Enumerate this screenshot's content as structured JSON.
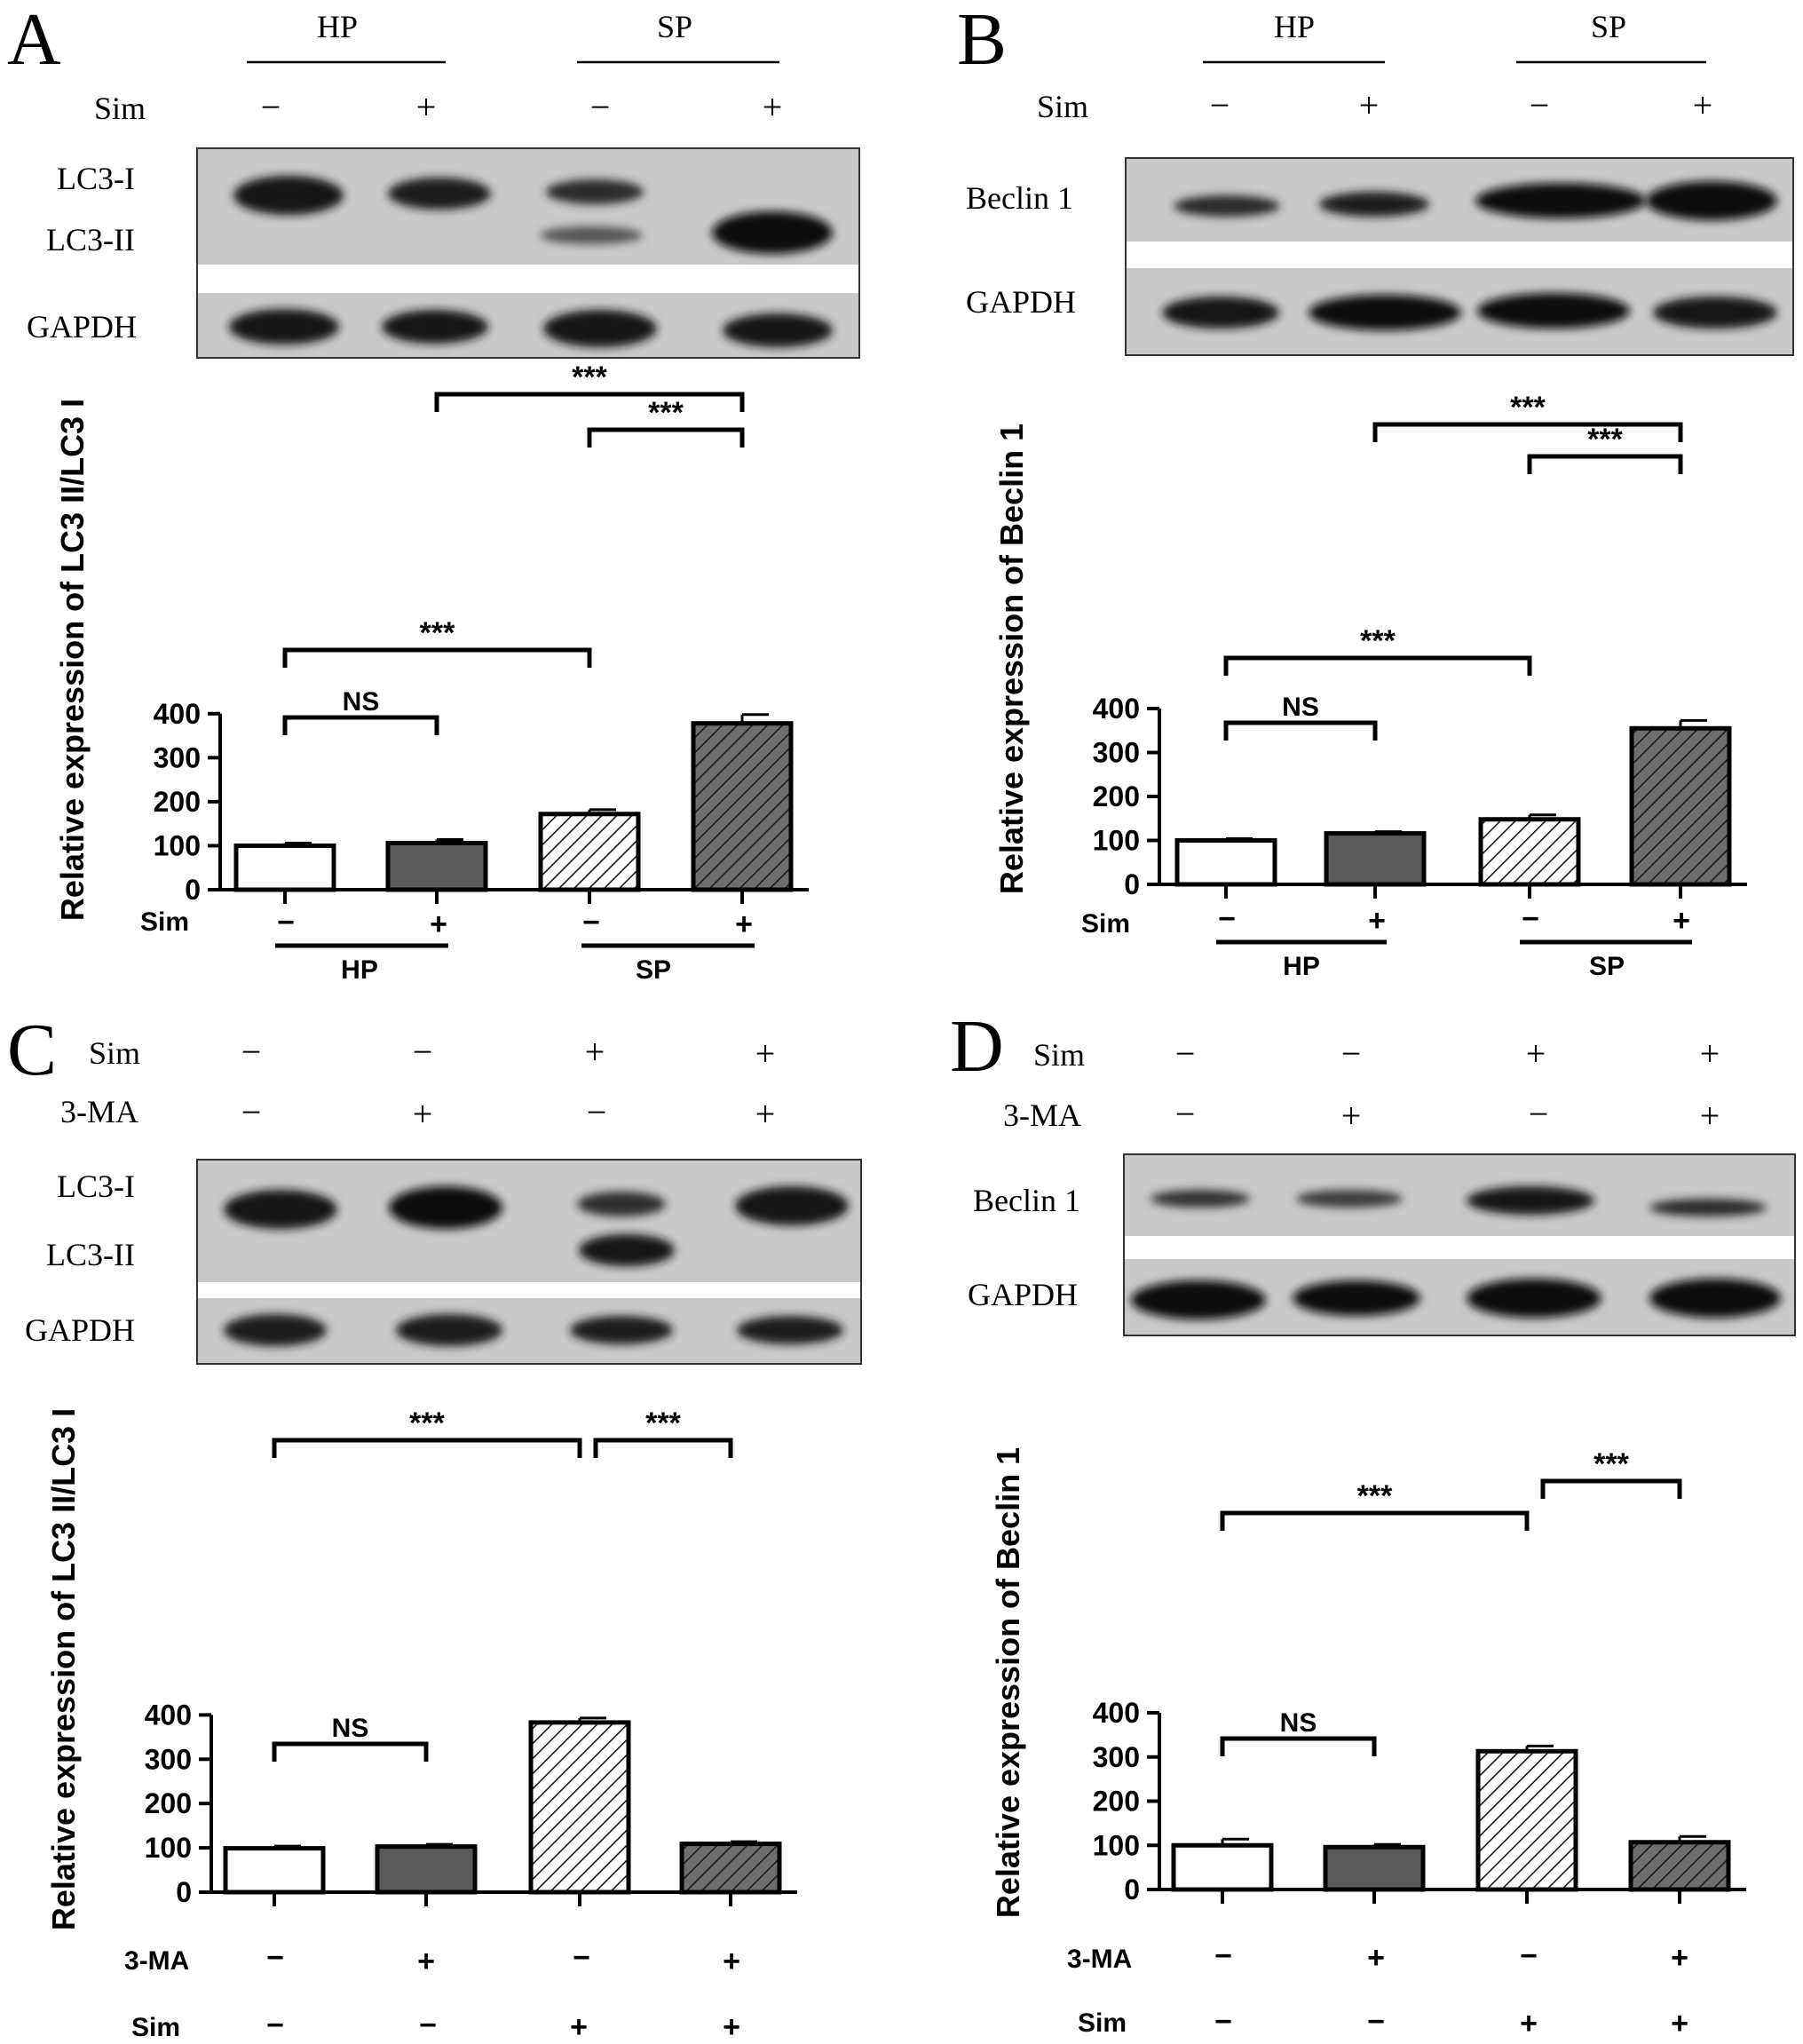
{
  "figure": {
    "panels": [
      {
        "letter": "A",
        "blot": {
          "groups": [
            "HP",
            "SP"
          ],
          "treat_rows": [
            {
              "name": "Sim",
              "signs": [
                "−",
                "+",
                "−",
                "+"
              ]
            }
          ],
          "band_labels": [
            "LC3-I",
            "LC3-II",
            "GAPDH"
          ]
        },
        "chart": {
          "ylabel": "Relative expression of LC3 II/LC3 I",
          "bottom_rows": [
            {
              "name": "Sim",
              "signs": [
                "−",
                "+",
                "−",
                "+"
              ]
            }
          ],
          "bottom_groups": [
            "HP",
            "SP"
          ]
        }
      },
      {
        "letter": "B",
        "blot": {
          "groups": [
            "HP",
            "SP"
          ],
          "treat_rows": [
            {
              "name": "Sim",
              "signs": [
                "−",
                "+",
                "−",
                "+"
              ]
            }
          ],
          "band_labels": [
            "Beclin 1",
            "GAPDH"
          ]
        },
        "chart": {
          "ylabel": "Relative expression of Beclin 1",
          "bottom_rows": [
            {
              "name": "Sim",
              "signs": [
                "−",
                "+",
                "−",
                "+"
              ]
            }
          ],
          "bottom_groups": [
            "HP",
            "SP"
          ]
        }
      },
      {
        "letter": "C",
        "blot": {
          "groups": [],
          "treat_rows": [
            {
              "name": "Sim",
              "signs": [
                "−",
                "−",
                "+",
                "+"
              ]
            },
            {
              "name": "3-MA",
              "signs": [
                "−",
                "+",
                "−",
                "+"
              ]
            }
          ],
          "band_labels": [
            "LC3-I",
            "LC3-II",
            "GAPDH"
          ]
        },
        "chart": {
          "ylabel": "Relative expression of LC3 II/LC3 I",
          "bottom_rows": [
            {
              "name": "3-MA",
              "signs": [
                "−",
                "+",
                "−",
                "+"
              ]
            },
            {
              "name": "Sim",
              "signs": [
                "−",
                "−",
                "+",
                "+"
              ]
            }
          ],
          "bottom_groups": []
        }
      },
      {
        "letter": "D",
        "blot": {
          "groups": [],
          "treat_rows": [
            {
              "name": "Sim",
              "signs": [
                "−",
                "−",
                "+",
                "+"
              ]
            },
            {
              "name": "3-MA",
              "signs": [
                "−",
                "+",
                "−",
                "+"
              ]
            }
          ],
          "band_labels": [
            "Beclin 1",
            "GAPDH"
          ]
        },
        "chart": {
          "ylabel": "Relative expression of Beclin 1",
          "bottom_rows": [
            {
              "name": "3-MA",
              "signs": [
                "−",
                "+",
                "−",
                "+"
              ]
            },
            {
              "name": "Sim",
              "signs": [
                "−",
                "−",
                "+",
                "+"
              ]
            }
          ],
          "bottom_groups": []
        }
      }
    ],
    "colors": {
      "bar_fill": [
        "#ffffff",
        "#5a5a5a",
        "#ffffff",
        "#6e6e6e"
      ],
      "hatch": "#1a1a1a",
      "blot_bg": "#c9c9c9",
      "band": "#141414",
      "separator": "#ffffff"
    }
  },
  "chart_data": [
    {
      "panel": "A",
      "type": "bar",
      "ylabel": "Relative expression of LC3 II/LC3 I",
      "ylim": [
        0,
        400
      ],
      "yticks": [
        0,
        100,
        200,
        300,
        400
      ],
      "groups": [
        "HP",
        "SP"
      ],
      "treatment": {
        "Sim": [
          "−",
          "+",
          "−",
          "+"
        ]
      },
      "values": [
        100,
        106,
        172,
        378
      ],
      "errors": [
        6,
        8,
        10,
        20
      ],
      "significance": [
        {
          "from": 0,
          "to": 1,
          "label": "NS"
        },
        {
          "from": 0,
          "to": 2,
          "label": "***"
        },
        {
          "from": 2,
          "to": 3,
          "label": "***"
        },
        {
          "from": 1,
          "to": 3,
          "label": "***"
        }
      ]
    },
    {
      "panel": "B",
      "type": "bar",
      "ylabel": "Relative expression of Beclin 1",
      "ylim": [
        0,
        400
      ],
      "yticks": [
        0,
        100,
        200,
        300,
        400
      ],
      "groups": [
        "HP",
        "SP"
      ],
      "treatment": {
        "Sim": [
          "−",
          "+",
          "−",
          "+"
        ]
      },
      "values": [
        100,
        116,
        148,
        355
      ],
      "errors": [
        4,
        4,
        10,
        18
      ],
      "significance": [
        {
          "from": 0,
          "to": 1,
          "label": "NS"
        },
        {
          "from": 0,
          "to": 2,
          "label": "***"
        },
        {
          "from": 2,
          "to": 3,
          "label": "***"
        },
        {
          "from": 1,
          "to": 3,
          "label": "***"
        }
      ]
    },
    {
      "panel": "C",
      "type": "bar",
      "ylabel": "Relative expression of LC3 II/LC3 I",
      "ylim": [
        0,
        400
      ],
      "yticks": [
        0,
        100,
        200,
        300,
        400
      ],
      "treatment": {
        "3-MA": [
          "−",
          "+",
          "−",
          "+"
        ],
        "Sim": [
          "−",
          "−",
          "+",
          "+"
        ]
      },
      "values": [
        99,
        103,
        383,
        109
      ],
      "errors": [
        5,
        5,
        10,
        5
      ],
      "significance": [
        {
          "from": 0,
          "to": 1,
          "label": "NS"
        },
        {
          "from": 0,
          "to": 2,
          "label": "***"
        },
        {
          "from": 2,
          "to": 3,
          "label": "***"
        }
      ]
    },
    {
      "panel": "D",
      "type": "bar",
      "ylabel": "Relative expression of Beclin 1",
      "ylim": [
        0,
        400
      ],
      "yticks": [
        0,
        100,
        200,
        300,
        400
      ],
      "treatment": {
        "3-MA": [
          "−",
          "+",
          "−",
          "+"
        ],
        "Sim": [
          "−",
          "−",
          "+",
          "+"
        ]
      },
      "values": [
        100,
        96,
        313,
        107
      ],
      "errors": [
        14,
        6,
        12,
        13
      ],
      "significance": [
        {
          "from": 0,
          "to": 1,
          "label": "NS"
        },
        {
          "from": 0,
          "to": 2,
          "label": "***"
        },
        {
          "from": 2,
          "to": 3,
          "label": "***"
        }
      ]
    }
  ]
}
